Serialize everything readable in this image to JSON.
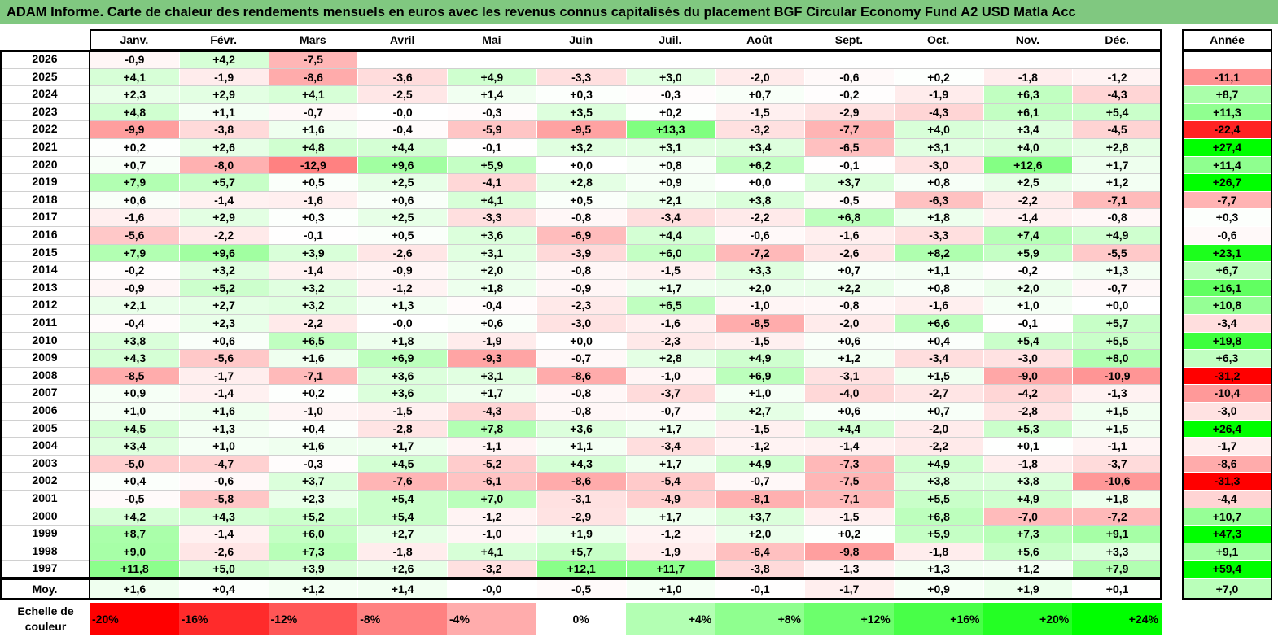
{
  "title": "ADAM Informe. Carte de chaleur des rendements mensuels en euros avec les revenus connus capitalisés du placement BGF Circular Economy Fund A2 USD Matla Acc",
  "months": [
    "Janv.",
    "Févr.",
    "Mars",
    "Avril",
    "Mai",
    "Juin",
    "Juil.",
    "Août",
    "Sept.",
    "Oct.",
    "Nov.",
    "Déc."
  ],
  "year_header": "Année",
  "avg_label": "Moy.",
  "scale_label": "Echelle de couleur",
  "colors": {
    "positive": "#00ff00",
    "negative": "#ff0000",
    "neutral": "#ffffff",
    "title_bg": "#80c880"
  },
  "chart_data": {
    "type": "heatmap",
    "title": "ADAM Informe. Carte de chaleur des rendements mensuels en euros avec les revenus connus capitalisés du placement BGF Circular Economy Fund A2 USD Matla Acc",
    "rows": [
      {
        "year": "2026",
        "months": [
          "-0,9",
          "+4,2",
          "-7,5",
          "",
          "",
          "",
          "",
          "",
          "",
          "",
          "",
          ""
        ],
        "annual": ""
      },
      {
        "year": "2025",
        "months": [
          "+4,1",
          "-1,9",
          "-8,6",
          "-3,6",
          "+4,9",
          "-3,3",
          "+3,0",
          "-2,0",
          "-0,6",
          "+0,2",
          "-1,8",
          "-1,2"
        ],
        "annual": "-11,1"
      },
      {
        "year": "2024",
        "months": [
          "+2,3",
          "+2,9",
          "+4,1",
          "-2,5",
          "+1,4",
          "+0,3",
          "-0,3",
          "+0,7",
          "-0,2",
          "-1,9",
          "+6,3",
          "-4,3"
        ],
        "annual": "+8,7"
      },
      {
        "year": "2023",
        "months": [
          "+4,8",
          "+1,1",
          "-0,7",
          "-0,0",
          "-0,3",
          "+3,5",
          "+0,2",
          "-1,5",
          "-2,9",
          "-4,3",
          "+6,1",
          "+5,4"
        ],
        "annual": "+11,3"
      },
      {
        "year": "2022",
        "months": [
          "-9,9",
          "-3,8",
          "+1,6",
          "-0,4",
          "-5,9",
          "-9,5",
          "+13,3",
          "-3,2",
          "-7,7",
          "+4,0",
          "+3,4",
          "-4,5"
        ],
        "annual": "-22,4"
      },
      {
        "year": "2021",
        "months": [
          "+0,2",
          "+2,6",
          "+4,8",
          "+4,4",
          "-0,1",
          "+3,2",
          "+3,1",
          "+3,4",
          "-6,5",
          "+3,1",
          "+4,0",
          "+2,8"
        ],
        "annual": "+27,4"
      },
      {
        "year": "2020",
        "months": [
          "+0,7",
          "-8,0",
          "-12,9",
          "+9,6",
          "+5,9",
          "+0,0",
          "+0,8",
          "+6,2",
          "-0,1",
          "-3,0",
          "+12,6",
          "+1,7"
        ],
        "annual": "+11,4"
      },
      {
        "year": "2019",
        "months": [
          "+7,9",
          "+5,7",
          "+0,5",
          "+2,5",
          "-4,1",
          "+2,8",
          "+0,9",
          "+0,0",
          "+3,7",
          "+0,8",
          "+2,5",
          "+1,2"
        ],
        "annual": "+26,7"
      },
      {
        "year": "2018",
        "months": [
          "+0,6",
          "-1,4",
          "-1,6",
          "+0,6",
          "+4,1",
          "+0,5",
          "+2,1",
          "+3,8",
          "-0,5",
          "-6,3",
          "-2,2",
          "-7,1"
        ],
        "annual": "-7,7"
      },
      {
        "year": "2017",
        "months": [
          "-1,6",
          "+2,9",
          "+0,3",
          "+2,5",
          "-3,3",
          "-0,8",
          "-3,4",
          "-2,2",
          "+6,8",
          "+1,8",
          "-1,4",
          "-0,8"
        ],
        "annual": "+0,3"
      },
      {
        "year": "2016",
        "months": [
          "-5,6",
          "-2,2",
          "-0,1",
          "+0,5",
          "+3,6",
          "-6,9",
          "+4,4",
          "-0,6",
          "-1,6",
          "-3,3",
          "+7,4",
          "+4,9"
        ],
        "annual": "-0,6"
      },
      {
        "year": "2015",
        "months": [
          "+7,9",
          "+9,6",
          "+3,9",
          "-2,6",
          "+3,1",
          "-3,9",
          "+6,0",
          "-7,2",
          "-2,6",
          "+8,2",
          "+5,9",
          "-5,5"
        ],
        "annual": "+23,1"
      },
      {
        "year": "2014",
        "months": [
          "-0,2",
          "+3,2",
          "-1,4",
          "-0,9",
          "+2,0",
          "-0,8",
          "-1,5",
          "+3,3",
          "+0,7",
          "+1,1",
          "-0,2",
          "+1,3"
        ],
        "annual": "+6,7"
      },
      {
        "year": "2013",
        "months": [
          "-0,9",
          "+5,2",
          "+3,2",
          "-1,2",
          "+1,8",
          "-0,9",
          "+1,7",
          "+2,0",
          "+2,2",
          "+0,8",
          "+2,0",
          "-0,7"
        ],
        "annual": "+16,1"
      },
      {
        "year": "2012",
        "months": [
          "+2,1",
          "+2,7",
          "+3,2",
          "+1,3",
          "-0,4",
          "-2,3",
          "+6,5",
          "-1,0",
          "-0,8",
          "-1,6",
          "+1,0",
          "+0,0"
        ],
        "annual": "+10,8"
      },
      {
        "year": "2011",
        "months": [
          "-0,4",
          "+2,3",
          "-2,2",
          "-0,0",
          "+0,6",
          "-3,0",
          "-1,6",
          "-8,5",
          "-2,0",
          "+6,6",
          "-0,1",
          "+5,7"
        ],
        "annual": "-3,4"
      },
      {
        "year": "2010",
        "months": [
          "+3,8",
          "+0,6",
          "+6,5",
          "+1,8",
          "-1,9",
          "+0,0",
          "-2,3",
          "-1,5",
          "+0,6",
          "+0,4",
          "+5,4",
          "+5,5"
        ],
        "annual": "+19,8"
      },
      {
        "year": "2009",
        "months": [
          "+4,3",
          "-5,6",
          "+1,6",
          "+6,9",
          "-9,3",
          "-0,7",
          "+2,8",
          "+4,9",
          "+1,2",
          "-3,4",
          "-3,0",
          "+8,0"
        ],
        "annual": "+6,3"
      },
      {
        "year": "2008",
        "months": [
          "-8,5",
          "-1,7",
          "-7,1",
          "+3,6",
          "+3,1",
          "-8,6",
          "-1,0",
          "+6,9",
          "-3,1",
          "+1,5",
          "-9,0",
          "-10,9"
        ],
        "annual": "-31,2"
      },
      {
        "year": "2007",
        "months": [
          "+0,9",
          "-1,4",
          "+0,2",
          "+3,6",
          "+1,7",
          "-0,8",
          "-3,7",
          "+1,0",
          "-4,0",
          "-2,7",
          "-4,2",
          "-1,3"
        ],
        "annual": "-10,4"
      },
      {
        "year": "2006",
        "months": [
          "+1,0",
          "+1,6",
          "-1,0",
          "-1,5",
          "-4,3",
          "-0,8",
          "-0,7",
          "+2,7",
          "+0,6",
          "+0,7",
          "-2,8",
          "+1,5"
        ],
        "annual": "-3,0"
      },
      {
        "year": "2005",
        "months": [
          "+4,5",
          "+1,3",
          "+0,4",
          "-2,8",
          "+7,8",
          "+3,6",
          "+1,7",
          "-1,5",
          "+4,4",
          "-2,0",
          "+5,3",
          "+1,5"
        ],
        "annual": "+26,4"
      },
      {
        "year": "2004",
        "months": [
          "+3,4",
          "+1,0",
          "+1,6",
          "+1,7",
          "-1,1",
          "+1,1",
          "-3,4",
          "-1,2",
          "-1,4",
          "-2,2",
          "+0,1",
          "-1,1"
        ],
        "annual": "-1,7"
      },
      {
        "year": "2003",
        "months": [
          "-5,0",
          "-4,7",
          "-0,3",
          "+4,5",
          "-5,2",
          "+4,3",
          "+1,7",
          "+4,9",
          "-7,3",
          "+4,9",
          "-1,8",
          "-3,7"
        ],
        "annual": "-8,6"
      },
      {
        "year": "2002",
        "months": [
          "+0,4",
          "-0,6",
          "+3,7",
          "-7,6",
          "-6,1",
          "-8,6",
          "-5,4",
          "-0,7",
          "-7,5",
          "+3,8",
          "+3,8",
          "-10,6"
        ],
        "annual": "-31,3"
      },
      {
        "year": "2001",
        "months": [
          "-0,5",
          "-5,8",
          "+2,3",
          "+5,4",
          "+7,0",
          "-3,1",
          "-4,9",
          "-8,1",
          "-7,1",
          "+5,5",
          "+4,9",
          "+1,8"
        ],
        "annual": "-4,4"
      },
      {
        "year": "2000",
        "months": [
          "+4,2",
          "+4,3",
          "+5,2",
          "+5,4",
          "-1,2",
          "-2,9",
          "+1,7",
          "+3,7",
          "-1,5",
          "+6,8",
          "-7,0",
          "-7,2"
        ],
        "annual": "+10,7"
      },
      {
        "year": "1999",
        "months": [
          "+8,7",
          "-1,4",
          "+6,0",
          "+2,7",
          "-1,0",
          "+1,9",
          "-1,2",
          "+2,0",
          "+0,2",
          "+5,9",
          "+7,3",
          "+9,1"
        ],
        "annual": "+47,3"
      },
      {
        "year": "1998",
        "months": [
          "+9,0",
          "-2,6",
          "+7,3",
          "-1,8",
          "+4,1",
          "+5,7",
          "-1,9",
          "-6,4",
          "-9,8",
          "-1,8",
          "+5,6",
          "+3,3"
        ],
        "annual": "+9,1"
      },
      {
        "year": "1997",
        "months": [
          "+11,8",
          "+5,0",
          "+3,9",
          "+2,6",
          "-3,2",
          "+12,1",
          "+11,7",
          "-3,8",
          "-1,3",
          "+1,3",
          "+1,2",
          "+7,9"
        ],
        "annual": "+59,4"
      }
    ],
    "averages": {
      "months": [
        "+1,6",
        "+0,4",
        "+1,2",
        "+1,4",
        "-0,0",
        "-0,5",
        "+1,0",
        "-0,1",
        "-1,7",
        "+0,9",
        "+1,9",
        "+0,1"
      ],
      "annual": "+7,0"
    },
    "color_scale": [
      {
        "label": "-20%",
        "value": -20
      },
      {
        "label": "-16%",
        "value": -16
      },
      {
        "label": "-12%",
        "value": -12
      },
      {
        "label": "-8%",
        "value": -8
      },
      {
        "label": "-4%",
        "value": -4
      },
      {
        "label": "0%",
        "value": 0
      },
      {
        "label": "+4%",
        "value": 4
      },
      {
        "label": "+8%",
        "value": 8
      },
      {
        "label": "+12%",
        "value": 12
      },
      {
        "label": "+16%",
        "value": 16
      },
      {
        "label": "+20%",
        "value": 20
      },
      {
        "label": "+24%",
        "value": 24
      }
    ]
  }
}
